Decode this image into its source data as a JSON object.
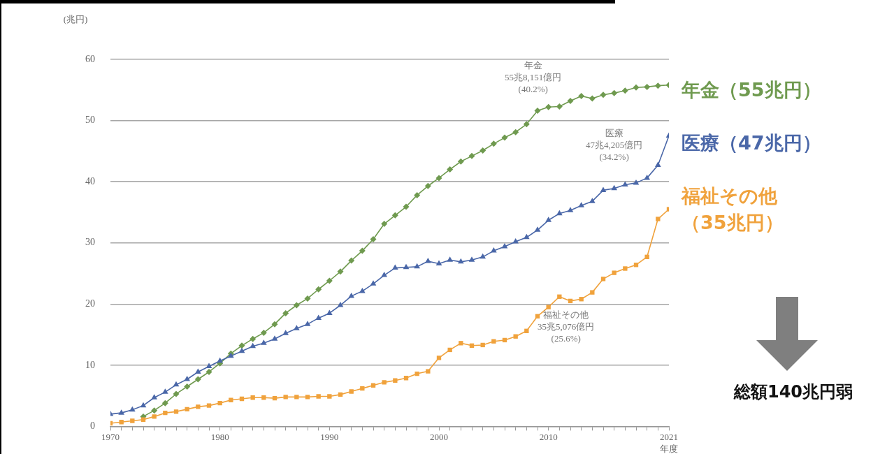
{
  "chart_data": {
    "type": "line",
    "ylabel": "(兆円)",
    "xlabel": "年度",
    "x": [
      1970,
      1971,
      1972,
      1973,
      1974,
      1975,
      1976,
      1977,
      1978,
      1979,
      1980,
      1981,
      1982,
      1983,
      1984,
      1985,
      1986,
      1987,
      1988,
      1989,
      1990,
      1991,
      1992,
      1993,
      1994,
      1995,
      1996,
      1997,
      1998,
      1999,
      2000,
      2001,
      2002,
      2003,
      2004,
      2005,
      2006,
      2007,
      2008,
      2009,
      2010,
      2011,
      2012,
      2013,
      2014,
      2015,
      2016,
      2017,
      2018,
      2019,
      2020,
      2021
    ],
    "series": [
      {
        "name": "年金（55兆円）",
        "color": "#6f9a4f",
        "marker": "diamond",
        "values": [
          null,
          null,
          null,
          1.6,
          2.6,
          3.8,
          5.3,
          6.5,
          7.7,
          8.9,
          10.3,
          11.9,
          13.2,
          14.3,
          15.3,
          16.7,
          18.5,
          19.8,
          20.9,
          22.4,
          23.8,
          25.3,
          27.1,
          28.7,
          30.6,
          33.1,
          34.5,
          35.9,
          37.8,
          39.3,
          40.6,
          42.0,
          43.3,
          44.2,
          45.1,
          46.2,
          47.2,
          48.1,
          49.4,
          51.6,
          52.2,
          52.3,
          53.2,
          54.0,
          53.6,
          54.2,
          54.5,
          54.9,
          55.4,
          55.5,
          55.7,
          55.8
        ]
      },
      {
        "name": "医療（47兆円）",
        "color": "#4a67a8",
        "marker": "triangle",
        "values": [
          2.0,
          2.2,
          2.7,
          3.4,
          4.7,
          5.6,
          6.8,
          7.7,
          8.9,
          9.8,
          10.7,
          11.5,
          12.3,
          13.1,
          13.6,
          14.3,
          15.2,
          16.0,
          16.7,
          17.7,
          18.5,
          19.8,
          21.3,
          22.1,
          23.3,
          24.7,
          25.9,
          26.0,
          26.1,
          27.0,
          26.6,
          27.2,
          26.9,
          27.2,
          27.7,
          28.7,
          29.4,
          30.2,
          30.9,
          32.1,
          33.7,
          34.8,
          35.3,
          36.1,
          36.8,
          38.6,
          38.9,
          39.5,
          39.8,
          40.6,
          42.7,
          47.5
        ]
      },
      {
        "name": "福祉その他（35兆円）",
        "color": "#f0a23c",
        "marker": "square",
        "values": [
          0.5,
          0.7,
          0.9,
          1.1,
          1.6,
          2.2,
          2.4,
          2.8,
          3.2,
          3.4,
          3.8,
          4.3,
          4.5,
          4.7,
          4.7,
          4.6,
          4.8,
          4.8,
          4.8,
          4.9,
          4.9,
          5.2,
          5.7,
          6.2,
          6.7,
          7.2,
          7.5,
          7.9,
          8.6,
          9.0,
          11.2,
          12.5,
          13.6,
          13.2,
          13.3,
          13.9,
          14.1,
          14.7,
          15.6,
          18.0,
          19.5,
          21.2,
          20.5,
          20.8,
          21.9,
          24.1,
          25.1,
          25.8,
          26.4,
          27.7,
          33.9,
          35.5
        ]
      }
    ],
    "xlim": [
      1970,
      2021
    ],
    "xticks": [
      1970,
      {
        "value": 1971,
        "label": null
      },
      {
        "value": 1972,
        "label": null
      },
      {
        "value": 1973,
        "label": null
      },
      {
        "value": 1974,
        "label": null
      },
      {
        "value": 1975,
        "label": null
      },
      {
        "value": 1976,
        "label": null
      },
      {
        "value": 1977,
        "label": null
      },
      {
        "value": 1978,
        "label": null
      },
      {
        "value": 1979,
        "label": null
      },
      1980,
      {
        "value": 1981,
        "label": null
      },
      {
        "value": 1982,
        "label": null
      },
      {
        "value": 1983,
        "label": null
      },
      {
        "value": 1984,
        "label": null
      },
      {
        "value": 1985,
        "label": null
      },
      {
        "value": 1986,
        "label": null
      },
      {
        "value": 1987,
        "label": null
      },
      {
        "value": 1988,
        "label": null
      },
      {
        "value": 1989,
        "label": null
      },
      1990,
      {
        "value": 1991,
        "label": null
      },
      {
        "value": 1992,
        "label": null
      },
      {
        "value": 1993,
        "label": null
      },
      {
        "value": 1994,
        "label": null
      },
      {
        "value": 1995,
        "label": null
      },
      {
        "value": 1996,
        "label": null
      },
      {
        "value": 1997,
        "label": null
      },
      {
        "value": 1998,
        "label": null
      },
      {
        "value": 1999,
        "label": null
      },
      2000,
      {
        "value": 2001,
        "label": null
      },
      {
        "value": 2002,
        "label": null
      },
      {
        "value": 2003,
        "label": null
      },
      {
        "value": 2004,
        "label": null
      },
      {
        "value": 2005,
        "label": null
      },
      {
        "value": 2006,
        "label": null
      },
      {
        "value": 2007,
        "label": null
      },
      {
        "value": 2008,
        "label": null
      },
      {
        "value": 2009,
        "label": null
      },
      2010,
      {
        "value": 2011,
        "label": null
      },
      {
        "value": 2012,
        "label": null
      },
      {
        "value": 2013,
        "label": null
      },
      {
        "value": 2014,
        "label": null
      },
      {
        "value": 2015,
        "label": null
      },
      {
        "value": 2016,
        "label": null
      },
      {
        "value": 2017,
        "label": null
      },
      {
        "value": 2018,
        "label": null
      },
      {
        "value": 2019,
        "label": null
      },
      {
        "value": 2020,
        "label": null
      },
      2021
    ],
    "ylim": [
      0,
      60
    ],
    "yticks": [
      0,
      10,
      20,
      30,
      40,
      50,
      60
    ],
    "grid": "y",
    "legend": "right",
    "annotations": [
      "年金\n55兆8,151億円\n(40.2%)",
      "医療\n47兆4,205億円\n(34.2%)",
      "福祉その他\n35兆5,076億円\n(25.6%)",
      "総額140兆円弱"
    ]
  }
}
